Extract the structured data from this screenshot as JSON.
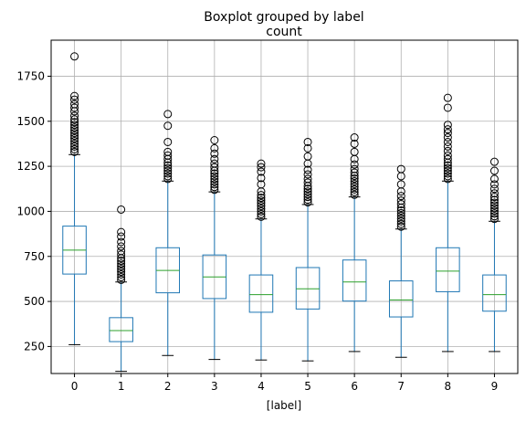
{
  "chart_data": {
    "type": "boxplot",
    "suptitle": "Boxplot grouped by label",
    "title": "count",
    "xlabel": "[label]",
    "ylabel": "",
    "categories": [
      "0",
      "1",
      "2",
      "3",
      "4",
      "5",
      "6",
      "7",
      "8",
      "9"
    ],
    "ylim": [
      100,
      1950
    ],
    "yticks": [
      250,
      500,
      750,
      1000,
      1250,
      1500,
      1750
    ],
    "grid": true,
    "colors": {
      "box": "#1f77b4",
      "median": "#2ca02c",
      "grid": "#b0b0b0",
      "cap": "#000000"
    },
    "boxes": [
      {
        "label": "0",
        "whislo": 260,
        "q1": 652,
        "med": 785,
        "q3": 918,
        "whishi": 1315,
        "fliers": [
          1330,
          1345,
          1360,
          1375,
          1390,
          1405,
          1420,
          1435,
          1450,
          1465,
          1480,
          1495,
          1510,
          1530,
          1555,
          1575,
          1595,
          1620,
          1640,
          1860
        ]
      },
      {
        "label": "1",
        "whislo": 112,
        "q1": 277,
        "med": 338,
        "q3": 410,
        "whishi": 608,
        "fliers": [
          620,
          635,
          650,
          665,
          680,
          695,
          710,
          725,
          740,
          760,
          780,
          805,
          830,
          860,
          885,
          1010
        ]
      },
      {
        "label": "2",
        "whislo": 200,
        "q1": 548,
        "med": 672,
        "q3": 798,
        "whishi": 1168,
        "fliers": [
          1180,
          1195,
          1210,
          1225,
          1240,
          1255,
          1270,
          1290,
          1310,
          1330,
          1385,
          1475,
          1540
        ]
      },
      {
        "label": "3",
        "whislo": 178,
        "q1": 516,
        "med": 636,
        "q3": 758,
        "whishi": 1108,
        "fliers": [
          1120,
          1135,
          1150,
          1165,
          1180,
          1195,
          1210,
          1225,
          1245,
          1265,
          1290,
          1320,
          1350,
          1395
        ]
      },
      {
        "label": "4",
        "whislo": 175,
        "q1": 440,
        "med": 538,
        "q3": 647,
        "whishi": 958,
        "fliers": [
          970,
          985,
          1000,
          1015,
          1030,
          1045,
          1060,
          1075,
          1090,
          1110,
          1150,
          1185,
          1220,
          1245,
          1265
        ]
      },
      {
        "label": "5",
        "whislo": 170,
        "q1": 458,
        "med": 570,
        "q3": 688,
        "whishi": 1038,
        "fliers": [
          1050,
          1065,
          1080,
          1095,
          1110,
          1125,
          1140,
          1160,
          1180,
          1205,
          1230,
          1265,
          1305,
          1350,
          1385
        ]
      },
      {
        "label": "6",
        "whislo": 222,
        "q1": 502,
        "med": 608,
        "q3": 730,
        "whishi": 1080,
        "fliers": [
          1092,
          1107,
          1122,
          1137,
          1152,
          1167,
          1182,
          1197,
          1215,
          1235,
          1260,
          1290,
          1330,
          1375,
          1410
        ]
      },
      {
        "label": "7",
        "whislo": 190,
        "q1": 414,
        "med": 508,
        "q3": 614,
        "whishi": 902,
        "fliers": [
          915,
          930,
          945,
          960,
          975,
          990,
          1005,
          1020,
          1040,
          1060,
          1085,
          1110,
          1150,
          1195,
          1235
        ]
      },
      {
        "label": "8",
        "whislo": 222,
        "q1": 554,
        "med": 668,
        "q3": 798,
        "whishi": 1168,
        "fliers": [
          1180,
          1195,
          1210,
          1225,
          1240,
          1255,
          1270,
          1290,
          1310,
          1335,
          1360,
          1385,
          1410,
          1435,
          1455,
          1480,
          1575,
          1630
        ]
      },
      {
        "label": "9",
        "whislo": 222,
        "q1": 446,
        "med": 538,
        "q3": 647,
        "whishi": 945,
        "fliers": [
          958,
          973,
          988,
          1003,
          1018,
          1033,
          1048,
          1063,
          1080,
          1100,
          1125,
          1150,
          1180,
          1225,
          1275
        ]
      }
    ]
  }
}
